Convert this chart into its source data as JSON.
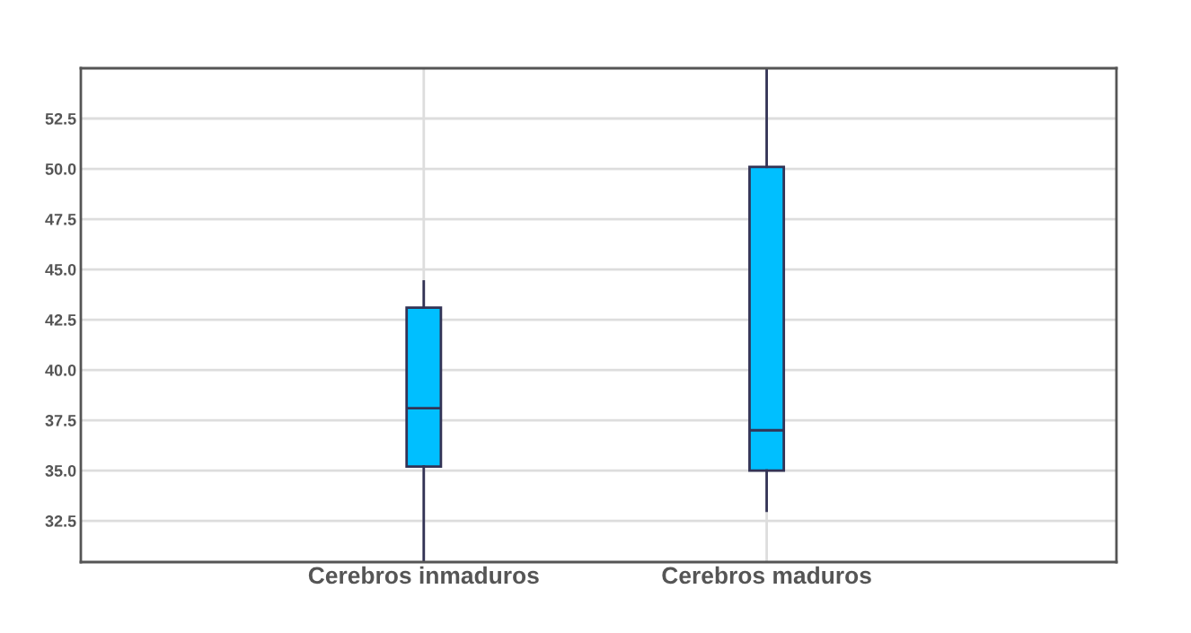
{
  "chart_data": {
    "type": "box",
    "categories": [
      "Cerebros inmaduros",
      "Cerebros maduros"
    ],
    "boxes": [
      {
        "low": 30.5,
        "q1": 35.2,
        "median": 38.1,
        "q3": 43.1,
        "high": 44.4
      },
      {
        "low": 33.0,
        "q1": 35.0,
        "median": 37.0,
        "q3": 50.1,
        "high": 55.0
      }
    ],
    "color": "#00bfff",
    "ylim": [
      30.45,
      55.0
    ],
    "yticks": [
      {
        "value": 32.5,
        "label": "32.5"
      },
      {
        "value": 35,
        "label": "35.0"
      },
      {
        "value": 37.5,
        "label": "37.5"
      },
      {
        "value": 40,
        "label": "40.0"
      },
      {
        "value": 42.5,
        "label": "42.5"
      },
      {
        "value": 45,
        "label": "45.0"
      },
      {
        "value": 47.5,
        "label": "47.5"
      },
      {
        "value": 50,
        "label": "50.0"
      },
      {
        "value": 52.5,
        "label": "52.5"
      }
    ],
    "grid": true
  }
}
